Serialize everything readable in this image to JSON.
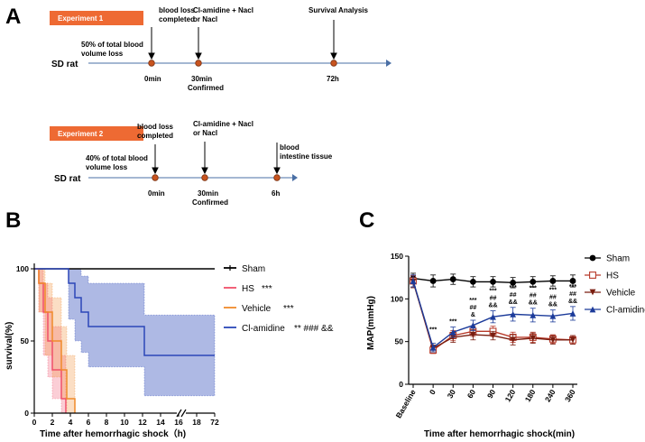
{
  "panel_a": {
    "label": "A",
    "rat_label": "SD rat",
    "exp1": {
      "title": "Experiment 1",
      "loss_text": [
        "50% of total blood",
        "volume loss"
      ],
      "time_points": [
        "0min",
        "30min",
        "72h"
      ],
      "sub_labels": [
        "",
        "Confirmed",
        ""
      ],
      "annotations": [
        [
          "blood loss",
          "completed"
        ],
        [
          "Cl-amidine + Nacl",
          "or Nacl"
        ],
        [
          "Survival Analysis"
        ]
      ]
    },
    "exp2": {
      "title": "Experiment 2",
      "loss_text": [
        "40% of total blood",
        "volume loss"
      ],
      "time_points": [
        "0min",
        "30min",
        "6h"
      ],
      "sub_labels": [
        "",
        "Confirmed",
        ""
      ],
      "annotations": [
        [
          "blood loss",
          "completed"
        ],
        [
          "Cl-amidine + Nacl",
          "or Nacl"
        ],
        [
          "blood",
          "intestine tissue"
        ]
      ]
    },
    "colors": {
      "banner": "#ee6a33",
      "dot": "#c8541f",
      "axis": "#4a6fa5"
    }
  },
  "panel_b": {
    "label": "B"
  },
  "panel_c": {
    "label": "C"
  },
  "chart_data": [
    {
      "type": "line",
      "subtype": "kaplan-meier",
      "title": "",
      "xlabel": "Time after hemorrhagic shock（h)",
      "ylabel": "survival(%)",
      "x_ticks": [
        "0",
        "2",
        "4",
        "6",
        "8",
        "10",
        "12",
        "14",
        "16",
        "18",
        "72"
      ],
      "y_ticks": [
        "0",
        "50",
        "100"
      ],
      "xlim": [
        0,
        20
      ],
      "ylim": [
        0,
        100
      ],
      "axis_break": "between 18 and 72",
      "series": [
        {
          "name": "Sham",
          "sig": "",
          "color": "#000000",
          "steps": [
            [
              0,
              100
            ],
            [
              20,
              100
            ]
          ]
        },
        {
          "name": "HS",
          "sig": "***",
          "color": "#f0506a",
          "steps": [
            [
              0,
              100
            ],
            [
              0.5,
              90
            ],
            [
              1,
              70
            ],
            [
              1.5,
              50
            ],
            [
              2,
              30
            ],
            [
              3,
              10
            ],
            [
              3.5,
              0
            ]
          ],
          "ci_upper": [
            100,
            100,
            90,
            80,
            60,
            40,
            20
          ],
          "ci_lower": [
            100,
            70,
            40,
            25,
            10,
            0,
            0
          ]
        },
        {
          "name": "Vehicle",
          "sig": "***",
          "color": "#f08a2a",
          "steps": [
            [
              0,
              100
            ],
            [
              0.5,
              90
            ],
            [
              1.2,
              70
            ],
            [
              2,
              50
            ],
            [
              3,
              30
            ],
            [
              3.6,
              10
            ],
            [
              4.5,
              0
            ]
          ],
          "ci_upper": [
            100,
            100,
            90,
            80,
            60,
            40,
            20
          ],
          "ci_lower": [
            100,
            70,
            40,
            25,
            10,
            0,
            0
          ]
        },
        {
          "name": "Cl-amidine",
          "sig": "** ### &&",
          "color": "#2b47b8",
          "steps": [
            [
              0,
              100
            ],
            [
              3.5,
              100
            ],
            [
              3.8,
              90
            ],
            [
              4.5,
              80
            ],
            [
              5.2,
              70
            ],
            [
              6,
              60
            ],
            [
              12,
              60
            ],
            [
              12.2,
              40
            ],
            [
              20,
              40
            ]
          ],
          "ci_upper": [
            100,
            100,
            100,
            100,
            95,
            90,
            90,
            68,
            68
          ],
          "ci_lower": [
            100,
            100,
            65,
            50,
            42,
            32,
            32,
            12,
            12
          ]
        }
      ]
    },
    {
      "type": "line",
      "title": "",
      "xlabel": "Time after hemorrhagic shock(min)",
      "ylabel": "MAP(mmHg)",
      "categories": [
        "Baseline",
        "0",
        "30",
        "60",
        "90",
        "120",
        "180",
        "240",
        "360"
      ],
      "y_ticks": [
        "0",
        "50",
        "100",
        "150"
      ],
      "ylim": [
        0,
        150
      ],
      "series": [
        {
          "name": "Sham",
          "color": "#000000",
          "marker": "circle",
          "values": [
            124,
            121,
            123,
            120,
            120,
            119,
            120,
            121,
            121
          ],
          "errors": [
            6,
            7,
            6,
            6,
            6,
            6,
            6,
            6,
            7
          ]
        },
        {
          "name": "HS",
          "color": "#b83a2a",
          "marker": "square-open",
          "values": [
            121,
            40,
            57,
            62,
            62,
            55,
            55,
            53,
            52
          ],
          "errors": [
            7,
            4,
            6,
            6,
            6,
            6,
            6,
            5,
            5
          ]
        },
        {
          "name": "Vehicle",
          "color": "#7a1e10",
          "marker": "triangle-down",
          "values": [
            120,
            42,
            55,
            58,
            57,
            52,
            54,
            52,
            52
          ],
          "errors": [
            7,
            4,
            6,
            6,
            5,
            6,
            6,
            5,
            5
          ]
        },
        {
          "name": "Cl-amidine",
          "color": "#1c3b9a",
          "marker": "triangle-up",
          "values": [
            121,
            43,
            61,
            69,
            79,
            82,
            81,
            80,
            83
          ],
          "errors": [
            7,
            5,
            6,
            6,
            7,
            8,
            8,
            7,
            8
          ]
        }
      ],
      "annotations": [
        {
          "x": "0",
          "lines": [
            "***"
          ]
        },
        {
          "x": "30",
          "lines": [
            "***"
          ]
        },
        {
          "x": "60",
          "lines": [
            "***",
            "##",
            "&"
          ]
        },
        {
          "x": "90",
          "lines": [
            "***",
            "##",
            "&&"
          ]
        },
        {
          "x": "120",
          "lines": [
            "***",
            "##",
            "&&"
          ]
        },
        {
          "x": "180",
          "lines": [
            "***",
            "##",
            "&&"
          ]
        },
        {
          "x": "240",
          "lines": [
            "***",
            "##",
            "&&"
          ]
        },
        {
          "x": "360",
          "lines": [
            "***",
            "##",
            "&&"
          ]
        }
      ]
    }
  ]
}
